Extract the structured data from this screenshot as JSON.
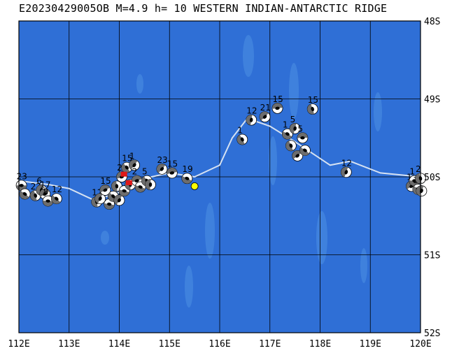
{
  "header": {
    "event_id": "E20230429005OB",
    "magnitude": "M=4.9",
    "depth": "h= 10",
    "region": "WESTERN INDIAN-ANTARCTIC RIDGE"
  },
  "map": {
    "lon_range": [
      112,
      120
    ],
    "lat_range": [
      -52,
      -48
    ],
    "x_tick_labels": [
      "112E",
      "113E",
      "114E",
      "115E",
      "116E",
      "117E",
      "118E",
      "119E",
      "120E"
    ],
    "y_tick_labels": [
      "48S",
      "49S",
      "50S",
      "51S",
      "52S"
    ],
    "ocean_color": "#2f6fd6",
    "seamount_color": "#3f81dd",
    "ridge_color": "#d6e2f2",
    "grid_color": "#000000",
    "epicenter": {
      "lon": 115.5,
      "lat": -50.12,
      "color": "#ffff00"
    },
    "ridge_line": [
      [
        112,
        -50.05
      ],
      [
        112.6,
        -50.1
      ],
      [
        113.0,
        -50.15
      ],
      [
        113.5,
        -50.3
      ],
      [
        114.0,
        -50.2
      ],
      [
        114.5,
        -50.02
      ],
      [
        115.0,
        -49.95
      ],
      [
        115.5,
        -50.0
      ],
      [
        116.0,
        -49.85
      ],
      [
        116.25,
        -49.5
      ],
      [
        116.55,
        -49.25
      ],
      [
        117.0,
        -49.35
      ],
      [
        117.5,
        -49.55
      ],
      [
        118.2,
        -49.85
      ],
      [
        118.6,
        -49.8
      ],
      [
        119.2,
        -49.95
      ],
      [
        120.0,
        -50.0
      ]
    ],
    "events": [
      {
        "lon": 112.05,
        "lat": -50.11,
        "label": "23"
      },
      {
        "lon": 112.12,
        "lat": -50.22,
        "label": ""
      },
      {
        "lon": 112.33,
        "lat": -50.24,
        "label": "22"
      },
      {
        "lon": 112.45,
        "lat": -50.17,
        "label": "6"
      },
      {
        "lon": 112.52,
        "lat": -50.22,
        "label": "17"
      },
      {
        "lon": 112.58,
        "lat": -50.31,
        "label": "8"
      },
      {
        "lon": 112.75,
        "lat": -50.28,
        "label": "12"
      },
      {
        "lon": 113.55,
        "lat": -50.32,
        "label": "12"
      },
      {
        "lon": 113.62,
        "lat": -50.28,
        "label": ""
      },
      {
        "lon": 113.72,
        "lat": -50.17,
        "label": "15"
      },
      {
        "lon": 113.8,
        "lat": -50.35,
        "label": ""
      },
      {
        "lon": 113.88,
        "lat": -50.25,
        "label": ""
      },
      {
        "lon": 113.95,
        "lat": -50.12,
        "label": ""
      },
      {
        "lon": 114.0,
        "lat": -50.3,
        "label": ""
      },
      {
        "lon": 114.05,
        "lat": -50.0,
        "label": "20"
      },
      {
        "lon": 114.1,
        "lat": -50.18,
        "label": ""
      },
      {
        "lon": 114.15,
        "lat": -49.88,
        "label": "15"
      },
      {
        "lon": 114.22,
        "lat": -50.1,
        "label": ""
      },
      {
        "lon": 114.3,
        "lat": -49.85,
        "label": "1"
      },
      {
        "lon": 114.35,
        "lat": -50.05,
        "label": "2"
      },
      {
        "lon": 114.42,
        "lat": -50.13,
        "label": ""
      },
      {
        "lon": 114.55,
        "lat": -50.05,
        "label": "5"
      },
      {
        "lon": 114.62,
        "lat": -50.1,
        "label": ""
      },
      {
        "lon": 114.85,
        "lat": -49.9,
        "label": "23"
      },
      {
        "lon": 115.05,
        "lat": -49.95,
        "label": "15"
      },
      {
        "lon": 115.35,
        "lat": -50.02,
        "label": "19"
      },
      {
        "lon": 116.45,
        "lat": -49.52,
        "label": "1"
      },
      {
        "lon": 116.63,
        "lat": -49.27,
        "label": "12"
      },
      {
        "lon": 116.9,
        "lat": -49.23,
        "label": "21"
      },
      {
        "lon": 117.15,
        "lat": -49.12,
        "label": "15"
      },
      {
        "lon": 117.35,
        "lat": -49.45,
        "label": "1"
      },
      {
        "lon": 117.42,
        "lat": -49.6,
        "label": ""
      },
      {
        "lon": 117.5,
        "lat": -49.38,
        "label": "5"
      },
      {
        "lon": 117.55,
        "lat": -49.73,
        "label": ""
      },
      {
        "lon": 117.65,
        "lat": -49.5,
        "label": "5"
      },
      {
        "lon": 117.7,
        "lat": -49.66,
        "label": ""
      },
      {
        "lon": 117.85,
        "lat": -49.13,
        "label": "15"
      },
      {
        "lon": 118.52,
        "lat": -49.94,
        "label": "12"
      },
      {
        "lon": 119.82,
        "lat": -50.12,
        "label": "1"
      },
      {
        "lon": 119.88,
        "lat": -50.05,
        "label": "1"
      },
      {
        "lon": 119.95,
        "lat": -50.16,
        "label": "3"
      },
      {
        "lon": 120.0,
        "lat": -50.02,
        "label": "2"
      },
      {
        "lon": 120.02,
        "lat": -50.18,
        "label": ""
      }
    ]
  }
}
